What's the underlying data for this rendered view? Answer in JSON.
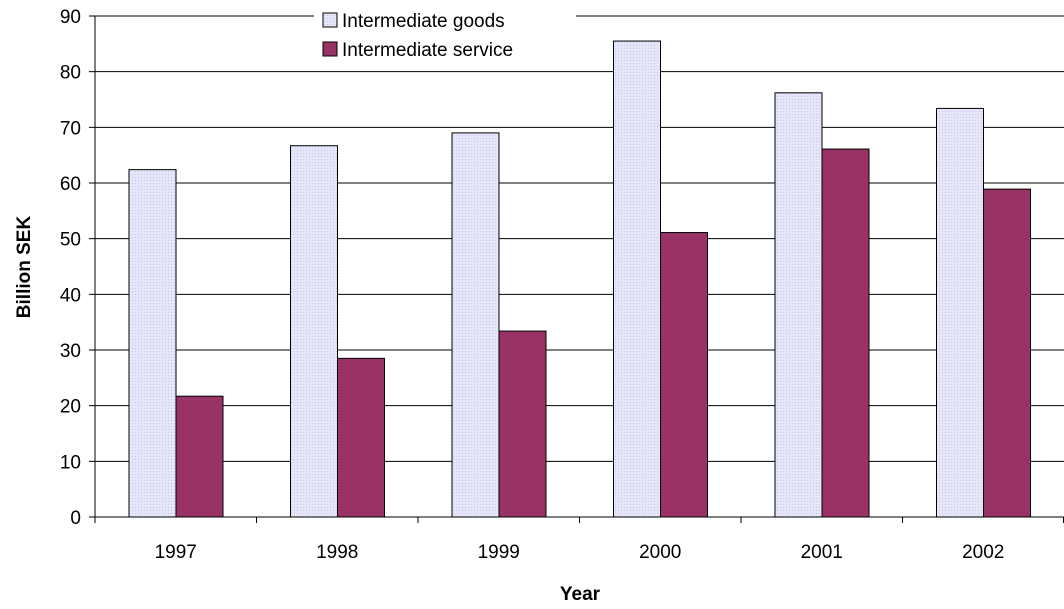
{
  "chart_data": {
    "type": "bar",
    "title": "",
    "xlabel": "Year",
    "ylabel": "Billion SEK",
    "categories": [
      "1997",
      "1998",
      "1999",
      "2000",
      "2001",
      "2002"
    ],
    "series": [
      {
        "name": "Intermediate goods",
        "values": [
          62.4,
          66.7,
          69.0,
          85.5,
          76.2,
          73.4
        ],
        "color": "#e6e6fa"
      },
      {
        "name": "Intermediate service",
        "values": [
          21.7,
          28.5,
          33.4,
          51.1,
          66.1,
          58.9
        ],
        "color": "#993366"
      }
    ],
    "ylim": [
      0,
      90
    ],
    "yticks": [
      0,
      10,
      20,
      30,
      40,
      50,
      60,
      70,
      80,
      90
    ],
    "grid": true,
    "legend_position": "top"
  }
}
